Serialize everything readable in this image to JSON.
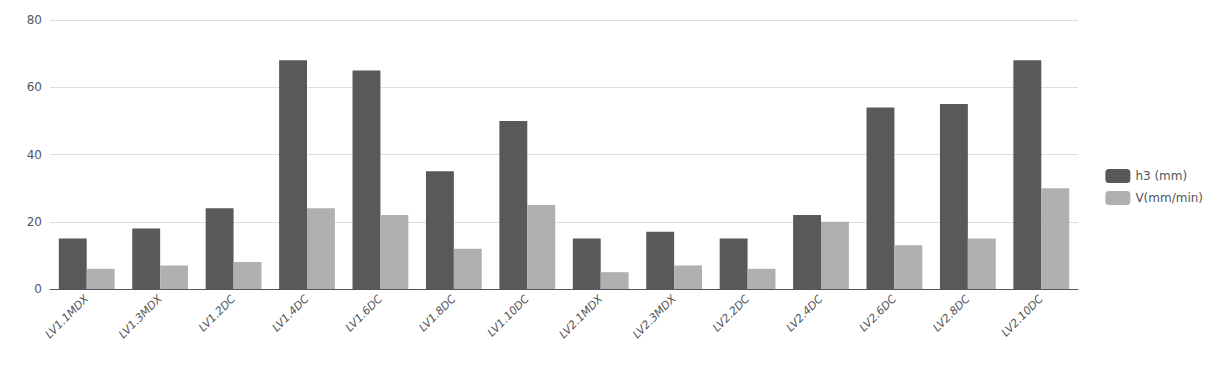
{
  "chart_data": {
    "type": "bar",
    "categories": [
      "LV1.1MDX",
      "LV1.3MDX",
      "LV1.2DC",
      "LV1.4DC",
      "LV1.6DC",
      "LV1.8DC",
      "LV1.10DC",
      "LV2.1MDX",
      "LV2.3MDX",
      "LV2.2DC",
      "LV2.4DC",
      "LV2.6DC",
      "LV2.8DC",
      "LV2.10DC"
    ],
    "series": [
      {
        "name": "h3 (mm)",
        "color": "#595959",
        "values": [
          15,
          18,
          24,
          68,
          65,
          35,
          50,
          15,
          17,
          15,
          22,
          54,
          55,
          68
        ]
      },
      {
        "name": "V(mm/min)",
        "color": "#b0b0b0",
        "values": [
          6,
          7,
          8,
          24,
          22,
          12,
          25,
          5,
          7,
          6,
          20,
          13,
          15,
          30
        ]
      }
    ],
    "ylim": [
      0,
      80
    ],
    "yticks": [
      0,
      20,
      40,
      60,
      80
    ],
    "grid": true,
    "legend": "right"
  }
}
